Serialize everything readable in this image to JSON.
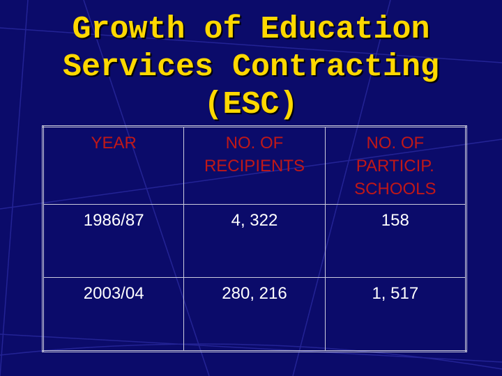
{
  "title": "Growth of Education Services Contracting (ESC)",
  "table": {
    "header": [
      "YEAR",
      "NO. OF RECIPIENTS",
      "NO. OF PARTICIP. SCHOOLS"
    ],
    "rows": [
      [
        "1986/87",
        "4, 322",
        "158"
      ],
      [
        "2003/04",
        "280, 216",
        "1, 517"
      ]
    ]
  }
}
